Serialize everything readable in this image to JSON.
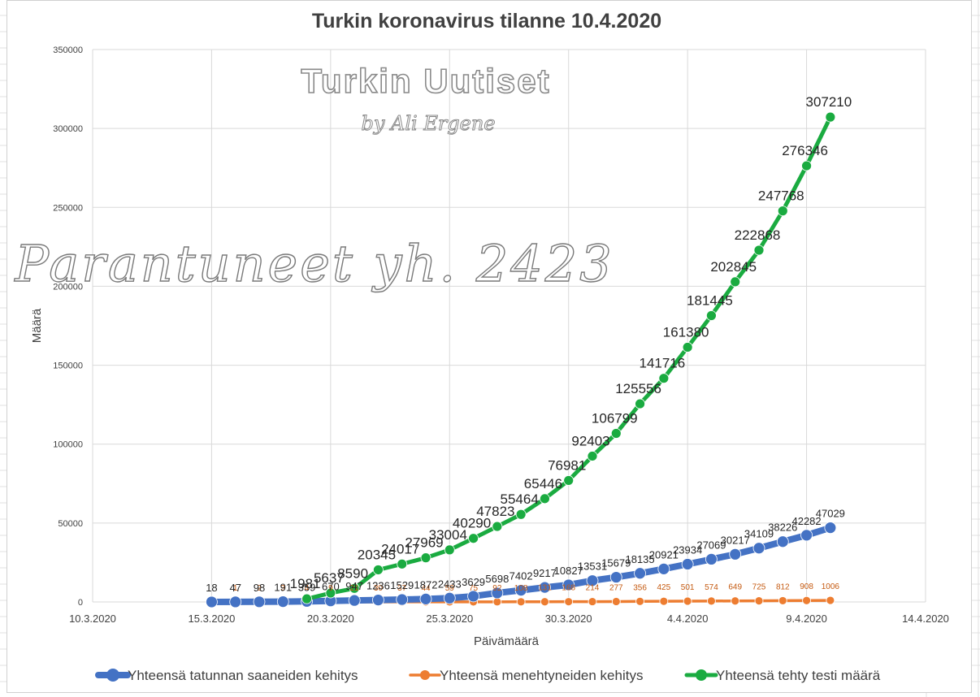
{
  "watermark": {
    "brand": "Turkin Uutiset",
    "byline": "by Ali Ergene",
    "recovered": "Parantuneet yh. 2423"
  },
  "colors": {
    "confirmed": "#4472c4",
    "deaths": "#ed7d31",
    "tests": "#1aab40",
    "grid": "#d9d9d9",
    "text": "#404040"
  },
  "chart_data": {
    "type": "line",
    "title": "Turkin koronavirus tilanne 10.4.2020",
    "xlabel": "Päivämäärä",
    "ylabel": "Määrä",
    "ylim": [
      0,
      350000
    ],
    "yticks": [
      "0",
      "50000",
      "100000",
      "150000",
      "200000",
      "250000",
      "300000",
      "350000"
    ],
    "xlim": [
      "10.3.2020",
      "14.4.2020"
    ],
    "xticks": [
      "10.3.2020",
      "15.3.2020",
      "20.3.2020",
      "25.3.2020",
      "30.3.2020",
      "4.4.2020",
      "9.4.2020",
      "14.4.2020"
    ],
    "grid": true,
    "legend_position": "bottom",
    "series": [
      {
        "name": "Yhteensä tatunnan saaneiden kehitys",
        "color": "#4472c4",
        "start_date": "15.3.2020",
        "values": [
          18,
          47,
          98,
          191,
          359,
          670,
          947,
          1236,
          1529,
          1872,
          2433,
          3629,
          5698,
          7402,
          9217,
          10827,
          13531,
          15679,
          18135,
          20921,
          23934,
          27069,
          30217,
          34109,
          38226,
          42282,
          47029
        ],
        "labels": [
          "18",
          "47",
          "98",
          "191",
          "359",
          "670",
          "947",
          "1236",
          "1529",
          "1872",
          "2433",
          "3629",
          "5698",
          "7402",
          "9217",
          "10827",
          "13531",
          "15679",
          "18135",
          "20921",
          "23934",
          "27069",
          "30217",
          "34109",
          "38226",
          "42282",
          "47029"
        ]
      },
      {
        "name": "Yhteensä menehtyneiden kehitys",
        "color": "#ed7d31",
        "start_date": "16.3.2020",
        "values": [
          1,
          2,
          3,
          4,
          9,
          21,
          30,
          37,
          44,
          59,
          75,
          92,
          108,
          131,
          168,
          214,
          277,
          356,
          425,
          501,
          574,
          649,
          725,
          812,
          908,
          1006
        ],
        "labels": [
          "1",
          "2",
          "3",
          "4",
          "9",
          "21",
          "30",
          "37",
          "44",
          "59",
          "75",
          "92",
          "108",
          "131",
          "168",
          "214",
          "277",
          "356",
          "425",
          "501",
          "574",
          "649",
          "725",
          "812",
          "908",
          "1006"
        ]
      },
      {
        "name": "Yhteensä tehty testi määrä",
        "color": "#1aab40",
        "start_date": "19.3.2020",
        "values": [
          1981,
          5637,
          8590,
          20345,
          24017,
          27969,
          33004,
          40290,
          47823,
          55464,
          65446,
          76981,
          92403,
          106799,
          125556,
          141716,
          161380,
          181445,
          202845,
          222868,
          247768,
          276346,
          307210
        ],
        "labels": [
          "1981",
          "5637",
          "8590",
          "20345",
          "24017",
          "27969",
          "33004",
          "40290",
          "47823",
          "55464",
          "65446",
          "76981",
          "92403",
          "106799",
          "125556",
          "141716",
          "161380",
          "181445",
          "202845",
          "222868",
          "247768",
          "276346",
          "307210"
        ]
      }
    ]
  }
}
